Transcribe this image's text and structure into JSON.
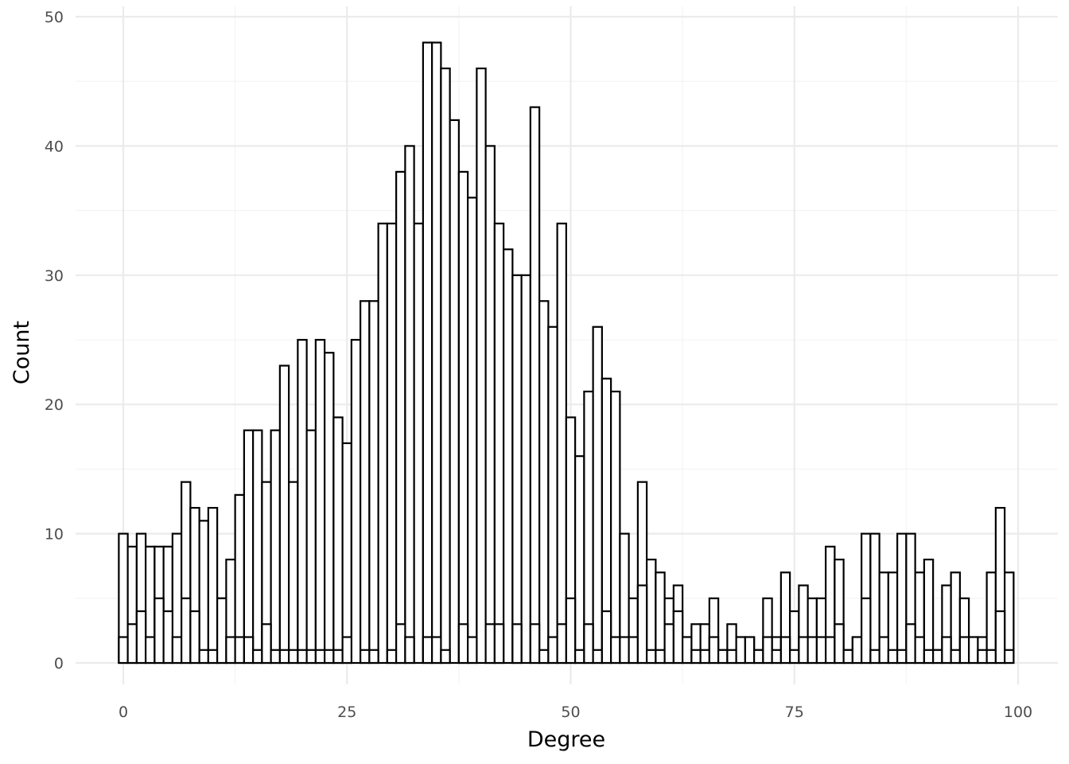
{
  "chart_data": {
    "type": "bar",
    "subtype": "histogram",
    "title": "",
    "xlabel": "Degree",
    "ylabel": "Count",
    "xlim": [
      -5,
      103
    ],
    "ylim": [
      0,
      50
    ],
    "x_ticks": [
      0,
      25,
      50,
      75,
      100
    ],
    "y_ticks": [
      0,
      10,
      20,
      30,
      40,
      50
    ],
    "bin_width": 1,
    "grid": true,
    "legend": "none",
    "colors": {
      "fill": "#ffffff",
      "outline": "#000000",
      "grid": "#ebebeb"
    },
    "series": [
      {
        "bins": [
          0,
          1,
          2,
          3,
          4,
          5,
          6,
          7,
          8,
          9,
          10,
          11,
          12,
          13,
          14,
          15,
          16,
          17,
          18,
          19,
          20,
          21,
          22,
          23,
          24,
          25,
          26,
          27,
          28,
          29,
          30,
          31,
          32,
          33,
          34,
          35,
          36,
          37,
          38,
          39,
          40,
          41,
          42,
          43,
          44,
          45,
          46,
          47,
          48,
          49,
          50,
          51,
          52,
          53,
          54,
          55,
          56,
          57,
          58,
          59,
          60,
          61,
          62,
          63,
          64,
          65,
          66,
          67,
          68,
          69,
          70,
          71,
          72,
          73,
          74,
          75,
          76,
          77,
          78,
          79,
          80,
          81,
          82,
          83,
          84,
          85,
          86,
          87,
          88,
          89,
          90,
          91,
          92,
          93,
          94,
          95,
          96,
          97,
          98,
          99
        ],
        "values": [
          10,
          9,
          10,
          9,
          9,
          9,
          10,
          14,
          12,
          11,
          12,
          5,
          8,
          13,
          18,
          18,
          14,
          18,
          23,
          14,
          25,
          18,
          25,
          24,
          19,
          17,
          25,
          28,
          28,
          34,
          34,
          38,
          40,
          34,
          48,
          48,
          46,
          42,
          38,
          36,
          46,
          40,
          34,
          32,
          30,
          30,
          43,
          28,
          26,
          34,
          19,
          16,
          21,
          26,
          22,
          21,
          10,
          5,
          14,
          8,
          7,
          5,
          6,
          2,
          3,
          3,
          5,
          1,
          3,
          2,
          2,
          1,
          5,
          2,
          7,
          4,
          6,
          5,
          5,
          9,
          8,
          1,
          2,
          10,
          10,
          7,
          7,
          10,
          10,
          7,
          8,
          1,
          6,
          7,
          5,
          2,
          2,
          7,
          12,
          7
        ]
      },
      {
        "bins": [
          0,
          1,
          2,
          3,
          4,
          5,
          6,
          7,
          8,
          9,
          10,
          11,
          12,
          13,
          14,
          15,
          16,
          17,
          18,
          19,
          20,
          21,
          22,
          23,
          24,
          25,
          26,
          27,
          28,
          29,
          30,
          31,
          32,
          33,
          34,
          35,
          36,
          37,
          38,
          39,
          40,
          41,
          42,
          43,
          44,
          45,
          46,
          47,
          48,
          49,
          50,
          51,
          52,
          53,
          54,
          55,
          56,
          57,
          58,
          59,
          60,
          61,
          62,
          63,
          64,
          65,
          66,
          67,
          68,
          69,
          70,
          71,
          72,
          73,
          74,
          75,
          76,
          77,
          78,
          79,
          80,
          81,
          82,
          83,
          84,
          85,
          86,
          87,
          88,
          89,
          90,
          91,
          92,
          93,
          94,
          95,
          96,
          97,
          98,
          99
        ],
        "values": [
          2,
          3,
          4,
          2,
          5,
          4,
          2,
          5,
          4,
          1,
          1,
          5,
          2,
          2,
          2,
          1,
          3,
          1,
          1,
          1,
          1,
          1,
          1,
          1,
          1,
          2,
          0,
          1,
          1,
          0,
          1,
          3,
          2,
          0,
          2,
          2,
          1,
          0,
          3,
          2,
          0,
          3,
          3,
          0,
          3,
          0,
          3,
          1,
          2,
          3,
          5,
          1,
          3,
          1,
          4,
          2,
          2,
          2,
          6,
          1,
          1,
          3,
          4,
          2,
          1,
          1,
          2,
          1,
          1,
          2,
          2,
          1,
          2,
          1,
          2,
          1,
          2,
          2,
          2,
          2,
          3,
          1,
          2,
          5,
          1,
          2,
          1,
          1,
          3,
          2,
          1,
          1,
          2,
          1,
          2,
          2,
          1,
          1,
          4,
          1
        ]
      }
    ]
  }
}
